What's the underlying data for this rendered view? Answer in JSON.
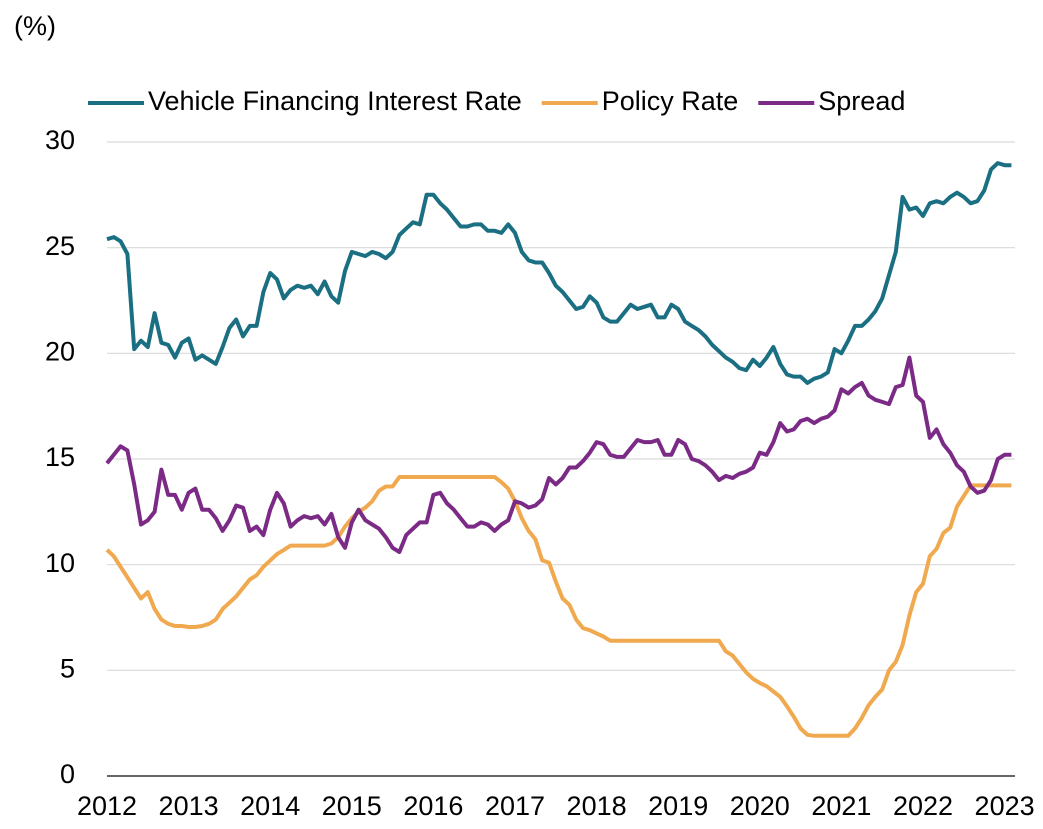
{
  "chart_data": {
    "type": "line",
    "ylabel": "(%)",
    "categories": [
      "2012",
      null,
      null,
      null,
      null,
      null,
      null,
      null,
      null,
      null,
      null,
      null,
      "2013",
      null,
      null,
      null,
      null,
      null,
      null,
      null,
      null,
      null,
      null,
      null,
      "2014",
      null,
      null,
      null,
      null,
      null,
      null,
      null,
      null,
      null,
      null,
      null,
      "2015",
      null,
      null,
      null,
      null,
      null,
      null,
      null,
      null,
      null,
      null,
      null,
      "2016",
      null,
      null,
      null,
      null,
      null,
      null,
      null,
      null,
      null,
      null,
      null,
      "2017",
      null,
      null,
      null,
      null,
      null,
      null,
      null,
      null,
      null,
      null,
      null,
      "2018",
      null,
      null,
      null,
      null,
      null,
      null,
      null,
      null,
      null,
      null,
      null,
      "2019",
      null,
      null,
      null,
      null,
      null,
      null,
      null,
      null,
      null,
      null,
      null,
      "2020",
      null,
      null,
      null,
      null,
      null,
      null,
      null,
      null,
      null,
      null,
      null,
      "2021",
      null,
      null,
      null,
      null,
      null,
      null,
      null,
      null,
      null,
      null,
      null,
      "2022",
      null,
      null,
      null,
      null,
      null,
      null,
      null,
      null,
      null,
      null,
      null,
      "2023",
      null
    ],
    "series": [
      {
        "name": "Vehicle Financing Interest Rate",
        "color": "#1a6f82",
        "values": [
          25.4,
          25.5,
          25.3,
          24.7,
          20.2,
          20.6,
          20.3,
          21.9,
          20.5,
          20.4,
          19.8,
          20.5,
          20.7,
          19.7,
          19.9,
          19.7,
          19.5,
          20.3,
          21.2,
          21.6,
          20.8,
          21.3,
          21.3,
          22.9,
          23.8,
          23.5,
          22.6,
          23.0,
          23.2,
          23.1,
          23.2,
          22.8,
          23.4,
          22.7,
          22.4,
          23.9,
          24.8,
          24.7,
          24.6,
          24.8,
          24.7,
          24.5,
          24.8,
          25.6,
          25.9,
          26.2,
          26.1,
          27.5,
          27.5,
          27.1,
          26.8,
          26.4,
          26.0,
          26.0,
          26.1,
          26.1,
          25.8,
          25.8,
          25.7,
          26.1,
          25.7,
          24.8,
          24.4,
          24.3,
          24.3,
          23.8,
          23.2,
          22.9,
          22.5,
          22.1,
          22.2,
          22.7,
          22.4,
          21.7,
          21.5,
          21.5,
          21.9,
          22.3,
          22.1,
          22.2,
          22.3,
          21.7,
          21.7,
          22.3,
          22.1,
          21.5,
          21.3,
          21.1,
          20.8,
          20.4,
          20.1,
          19.8,
          19.6,
          19.3,
          19.2,
          19.7,
          19.4,
          19.8,
          20.3,
          19.5,
          19.0,
          18.9,
          18.9,
          18.6,
          18.8,
          18.9,
          19.1,
          20.2,
          20.0,
          20.6,
          21.3,
          21.3,
          21.6,
          22.0,
          22.6,
          23.7,
          24.8,
          27.4,
          26.8,
          26.9,
          26.5,
          27.1,
          27.2,
          27.1,
          27.4,
          27.6,
          27.4,
          27.1,
          27.2,
          27.7,
          28.7,
          29.0,
          28.9,
          28.9
        ]
      },
      {
        "name": "Policy Rate",
        "color": "#f0a94e",
        "values": [
          10.7,
          10.4,
          9.9,
          9.4,
          8.9,
          8.4,
          8.7,
          7.9,
          7.4,
          7.2,
          7.1,
          7.1,
          7.05,
          7.05,
          7.1,
          7.2,
          7.4,
          7.9,
          8.2,
          8.5,
          8.9,
          9.3,
          9.5,
          9.9,
          10.2,
          10.5,
          10.7,
          10.9,
          10.9,
          10.9,
          10.9,
          10.9,
          10.9,
          11.0,
          11.3,
          11.8,
          12.2,
          12.5,
          12.7,
          13.0,
          13.5,
          13.7,
          13.7,
          14.15,
          14.15,
          14.15,
          14.15,
          14.15,
          14.15,
          14.15,
          14.15,
          14.15,
          14.15,
          14.15,
          14.15,
          14.15,
          14.15,
          14.15,
          13.9,
          13.6,
          13.0,
          12.2,
          11.6,
          11.2,
          10.2,
          10.1,
          9.2,
          8.4,
          8.1,
          7.4,
          7.0,
          6.9,
          6.75,
          6.6,
          6.4,
          6.4,
          6.4,
          6.4,
          6.4,
          6.4,
          6.4,
          6.4,
          6.4,
          6.4,
          6.4,
          6.4,
          6.4,
          6.4,
          6.4,
          6.4,
          6.4,
          5.9,
          5.7,
          5.3,
          4.9,
          4.6,
          4.4,
          4.25,
          4.0,
          3.75,
          3.3,
          2.8,
          2.25,
          1.95,
          1.9,
          1.9,
          1.9,
          1.9,
          1.9,
          1.9,
          2.25,
          2.75,
          3.35,
          3.75,
          4.1,
          5.0,
          5.4,
          6.2,
          7.6,
          8.7,
          9.1,
          10.4,
          10.75,
          11.5,
          11.75,
          12.75,
          13.25,
          13.75,
          13.75,
          13.75,
          13.75,
          13.75,
          13.75,
          13.75
        ]
      },
      {
        "name": "Spread",
        "color": "#7b2a86",
        "values": [
          14.8,
          15.2,
          15.6,
          15.4,
          13.8,
          11.9,
          12.1,
          12.5,
          14.5,
          13.3,
          13.3,
          12.6,
          13.4,
          13.6,
          12.6,
          12.6,
          12.2,
          11.6,
          12.1,
          12.8,
          12.7,
          11.6,
          11.8,
          11.4,
          12.6,
          13.4,
          12.9,
          11.8,
          12.1,
          12.3,
          12.2,
          12.3,
          11.9,
          12.4,
          11.3,
          10.8,
          12.0,
          12.6,
          12.1,
          11.9,
          11.7,
          11.3,
          10.8,
          10.6,
          11.4,
          11.7,
          12.0,
          12.0,
          13.3,
          13.4,
          12.9,
          12.6,
          12.2,
          11.8,
          11.8,
          12.0,
          11.9,
          11.6,
          11.9,
          12.1,
          13.0,
          12.9,
          12.7,
          12.8,
          13.1,
          14.1,
          13.8,
          14.1,
          14.6,
          14.6,
          14.9,
          15.3,
          15.8,
          15.7,
          15.2,
          15.1,
          15.1,
          15.5,
          15.9,
          15.8,
          15.8,
          15.9,
          15.2,
          15.2,
          15.9,
          15.7,
          15.0,
          14.9,
          14.7,
          14.4,
          14.0,
          14.2,
          14.1,
          14.3,
          14.4,
          14.6,
          15.3,
          15.2,
          15.8,
          16.7,
          16.3,
          16.4,
          16.8,
          16.9,
          16.7,
          16.9,
          17.0,
          17.3,
          18.3,
          18.1,
          18.4,
          18.6,
          18.0,
          17.8,
          17.7,
          17.6,
          18.4,
          18.5,
          19.8,
          18.0,
          17.7,
          16.0,
          16.4,
          15.7,
          15.3,
          14.7,
          14.4,
          13.7,
          13.4,
          13.5,
          14.0,
          15.0,
          15.2,
          15.2
        ]
      }
    ],
    "ylim": [
      0,
      30
    ],
    "yticks": [
      0,
      5,
      10,
      15,
      20,
      25,
      30
    ],
    "grid": true,
    "legend": "top"
  }
}
